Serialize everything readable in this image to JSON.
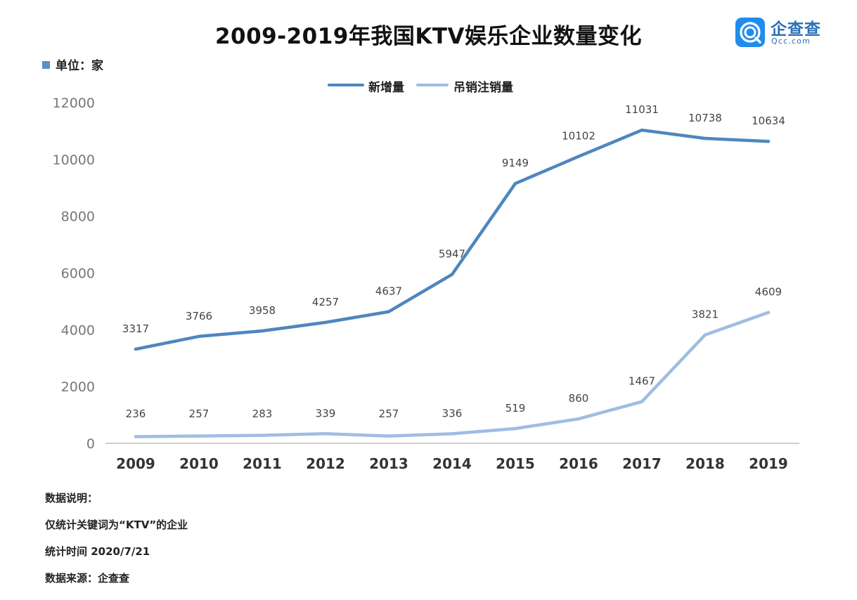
{
  "title": "2009-2019年我国KTV娱乐企业数量变化",
  "unit_label": "单位：家",
  "logo": {
    "text": "企查查",
    "sub": "Qcc.com",
    "icon": "qcc-logo-icon"
  },
  "notes": [
    "数据说明：",
    "仅统计关键词为“KTV”的企业",
    "统计时间 2020/7/21",
    "数据来源：企查查"
  ],
  "colors": {
    "series1": "#4f86be",
    "series2": "#9ebde2",
    "unit_square": "#5a8fc6"
  },
  "chart_data": {
    "type": "line",
    "title": "2009-2019年我国KTV娱乐企业数量变化",
    "xlabel": "",
    "ylabel": "",
    "categories": [
      "2009",
      "2010",
      "2011",
      "2012",
      "2013",
      "2014",
      "2015",
      "2016",
      "2017",
      "2018",
      "2019"
    ],
    "series": [
      {
        "name": "新增量",
        "values": [
          3317,
          3766,
          3958,
          4257,
          4637,
          5947,
          9149,
          10102,
          11031,
          10738,
          10634
        ]
      },
      {
        "name": "吊销注销量",
        "values": [
          236,
          257,
          283,
          339,
          257,
          336,
          519,
          860,
          1467,
          3821,
          4609
        ]
      }
    ],
    "ylim": [
      0,
      12000
    ],
    "yticks": [
      0,
      2000,
      4000,
      6000,
      8000,
      10000,
      12000
    ],
    "grid": false,
    "legend": "top-center",
    "data_labels": true
  }
}
